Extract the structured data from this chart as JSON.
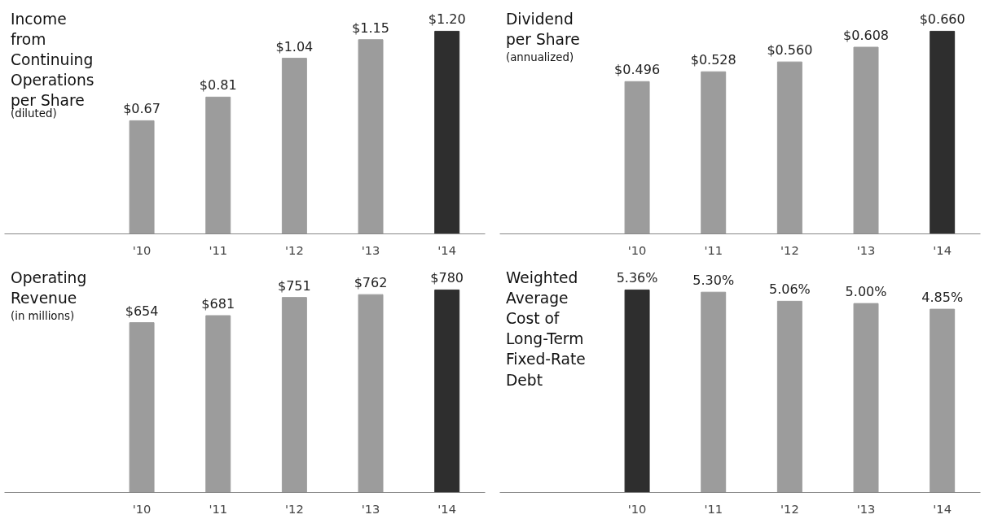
{
  "chart_data": [
    {
      "type": "bar",
      "title": "Income\nfrom\nContinuing\nOperations\nper Share",
      "subtitle": "(diluted)",
      "categories": [
        "'10",
        "'11",
        "'12",
        "'13",
        "'14"
      ],
      "values": [
        0.67,
        0.81,
        1.04,
        1.15,
        1.2
      ],
      "value_labels": [
        "$0.67",
        "$0.81",
        "$1.04",
        "$1.15",
        "$1.20"
      ],
      "colors": [
        "#9c9c9c",
        "#9c9c9c",
        "#9c9c9c",
        "#9c9c9c",
        "#2e2e2e"
      ]
    },
    {
      "type": "bar",
      "title": "Dividend\nper Share",
      "subtitle": "(annualized)",
      "categories": [
        "'10",
        "'11",
        "'12",
        "'13",
        "'14"
      ],
      "values": [
        0.496,
        0.528,
        0.56,
        0.608,
        0.66
      ],
      "value_labels": [
        "$0.496",
        "$0.528",
        "$0.560",
        "$0.608",
        "$0.660"
      ],
      "colors": [
        "#9c9c9c",
        "#9c9c9c",
        "#9c9c9c",
        "#9c9c9c",
        "#2e2e2e"
      ]
    },
    {
      "type": "bar",
      "title": "Operating\nRevenue",
      "subtitle": "(in millions)",
      "categories": [
        "'10",
        "'11",
        "'12",
        "'13",
        "'14"
      ],
      "values": [
        654,
        681,
        751,
        762,
        780
      ],
      "value_labels": [
        "$654",
        "$681",
        "$751",
        "$762",
        "$780"
      ],
      "colors": [
        "#9c9c9c",
        "#9c9c9c",
        "#9c9c9c",
        "#9c9c9c",
        "#2e2e2e"
      ]
    },
    {
      "type": "bar",
      "title": "Weighted\nAverage\nCost of\nLong-Term\nFixed-Rate\nDebt",
      "categories": [
        "'10",
        "'11",
        "'12",
        "'13",
        "'14"
      ],
      "values": [
        5.36,
        5.3,
        5.06,
        5.0,
        4.85
      ],
      "value_labels": [
        "5.36%",
        "5.30%",
        "5.06%",
        "5.00%",
        "4.85%"
      ],
      "colors": [
        "#2e2e2e",
        "#9c9c9c",
        "#9c9c9c",
        "#9c9c9c",
        "#9c9c9c"
      ]
    }
  ]
}
